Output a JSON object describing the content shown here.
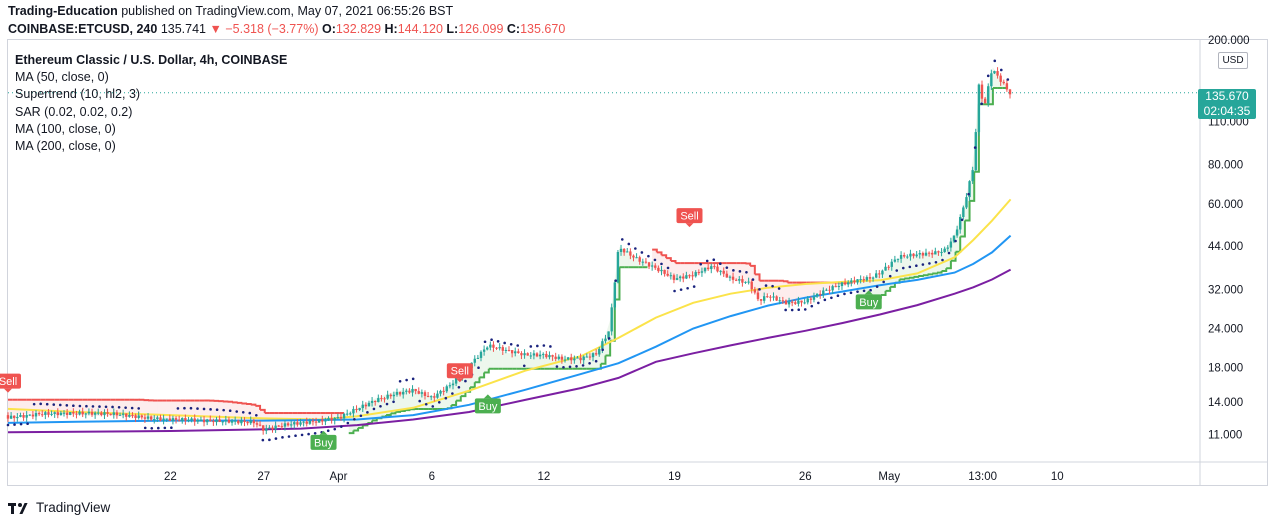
{
  "header": {
    "author": "Trading-Education",
    "published_text": "published on TradingView.com, May 07, 2021 06:55:26 BST"
  },
  "quote": {
    "symbol": "COINBASE:ETCUSD, 240",
    "last": "135.741",
    "arrow": "▼",
    "change": "−5.318 (−3.77%)",
    "o_label": "O:",
    "o": "132.829",
    "h_label": "H:",
    "h": "144.120",
    "l_label": "L:",
    "l": "126.099",
    "c_label": "C:",
    "c": "135.670"
  },
  "legend": {
    "title": "Ethereum Classic / U.S. Dollar, 4h, COINBASE",
    "indicators": [
      "MA (50, close, 0)",
      "Supertrend (10, hl2, 3)",
      "SAR (0.02, 0.02, 0.2)",
      "MA (100, close, 0)",
      "MA (200, close, 0)"
    ]
  },
  "price_axis": {
    "currency": "USD",
    "last_price": "135.670",
    "countdown": "02:04:35"
  },
  "footer": {
    "brand": "TradingView"
  },
  "colors": {
    "up": "#26a69a",
    "down": "#ef5350",
    "ma50": "#fbe34a",
    "ma100": "#2196f3",
    "ma200": "#7b1fa2",
    "supertrend_up": "#4caf50",
    "supertrend_down": "#ef5350",
    "sar": "#1a237e"
  },
  "chart_data": {
    "type": "line",
    "scale": "log",
    "ylim": [
      9,
      200
    ],
    "y_ticks": [
      200,
      110,
      80,
      60,
      44,
      32,
      24,
      18,
      14,
      11
    ],
    "y_tick_labels": [
      "200.000",
      "110.000",
      "80.000",
      "60.000",
      "44.000",
      "32.000",
      "24.000",
      "18.000",
      "14.000",
      "11.000"
    ],
    "x_ticks": [
      {
        "label": "22",
        "x": 20
      },
      {
        "label": "27",
        "x": 25
      },
      {
        "label": "Apr",
        "x": 29
      },
      {
        "label": "6",
        "x": 34
      },
      {
        "label": "12",
        "x": 40
      },
      {
        "label": "19",
        "x": 47
      },
      {
        "label": "26",
        "x": 54
      },
      {
        "label": "May",
        "x": 58.5
      },
      {
        "label": "13:00",
        "x": 63.5
      },
      {
        "label": "10",
        "x": 67.5
      }
    ],
    "xlim": [
      11.3,
      73.0
    ],
    "x_unit": "days since 2021-03-13",
    "series": [
      {
        "name": "price",
        "x": [
          11.3,
          13,
          15,
          17,
          19,
          21,
          23,
          24.5,
          25,
          26,
          27,
          28,
          29,
          30,
          31,
          32,
          33,
          34,
          35,
          36,
          37,
          38,
          39,
          40,
          41,
          42,
          42.8,
          43.5,
          44,
          45,
          46,
          47,
          48,
          49,
          50,
          51,
          51.5,
          52,
          53,
          54,
          55,
          56,
          57,
          57.5,
          58,
          59,
          60,
          61,
          61.5,
          62,
          62.5,
          63,
          63.3,
          63.6,
          64,
          64.5,
          65
        ],
        "values": [
          12.7,
          12.9,
          12.7,
          12.6,
          12.4,
          12.5,
          12.3,
          12.0,
          11.3,
          11.6,
          11.8,
          12.0,
          12.4,
          13.4,
          14.4,
          15.1,
          15.5,
          14.5,
          15.8,
          18.0,
          20.8,
          20.1,
          19.6,
          19.8,
          19.4,
          19.6,
          20.3,
          24.0,
          44.0,
          40.0,
          37.0,
          34.0,
          35.0,
          37.5,
          34.5,
          33.8,
          29.8,
          31.0,
          29.5,
          29.7,
          31.8,
          33.2,
          34.0,
          34.2,
          35.5,
          40.0,
          41.0,
          42.0,
          43.0,
          48.0,
          60.0,
          80.0,
          145.0,
          125.0,
          165.0,
          150.0,
          135.67
        ]
      },
      {
        "name": "MA (50, close, 0)",
        "x": [
          11.3,
          15,
          20,
          25,
          28,
          30,
          33,
          36,
          39,
          42,
          44,
          46,
          48,
          50,
          52,
          54,
          56,
          58,
          60,
          62,
          63,
          64,
          65
        ],
        "values": [
          13.3,
          13.0,
          12.7,
          12.4,
          12.3,
          12.6,
          13.4,
          15.2,
          17.6,
          19.6,
          22.4,
          26.0,
          29.0,
          31.0,
          32.4,
          33.3,
          33.8,
          34.2,
          36.0,
          40.5,
          46.0,
          53.0,
          62.0
        ]
      },
      {
        "name": "MA (100, close, 0)",
        "x": [
          11.3,
          15,
          20,
          25,
          30,
          33,
          36,
          39,
          42,
          44,
          46,
          48,
          50,
          52,
          54,
          56,
          58,
          60,
          62,
          63,
          64,
          65
        ],
        "values": [
          12.0,
          12.1,
          12.2,
          12.2,
          12.3,
          12.7,
          13.7,
          15.3,
          17.2,
          18.6,
          21.0,
          24.0,
          26.3,
          28.4,
          30.1,
          31.5,
          33.0,
          34.3,
          36.2,
          38.6,
          42.0,
          47.5
        ]
      },
      {
        "name": "MA (200, close, 0)",
        "x": [
          11.3,
          20,
          27,
          30,
          33,
          36,
          39,
          42,
          44,
          46,
          48,
          50,
          52,
          54,
          56,
          58,
          60,
          62,
          63,
          64,
          65
        ],
        "values": [
          11.2,
          11.3,
          11.5,
          11.8,
          12.3,
          13.0,
          14.2,
          15.5,
          16.7,
          18.8,
          20.0,
          21.2,
          22.4,
          23.6,
          25.0,
          26.6,
          28.5,
          31.0,
          32.5,
          34.4,
          37.0
        ]
      }
    ],
    "signals": [
      {
        "label": "Sell",
        "x": 11.3,
        "y": 16.3
      },
      {
        "label": "Buy",
        "x": 28.2,
        "y": 10.4
      },
      {
        "label": "Sell",
        "x": 35.5,
        "y": 17.6
      },
      {
        "label": "Buy",
        "x": 37.0,
        "y": 13.6
      },
      {
        "label": "Sell",
        "x": 47.8,
        "y": 55.0
      },
      {
        "label": "Buy",
        "x": 57.4,
        "y": 29.2
      }
    ]
  }
}
